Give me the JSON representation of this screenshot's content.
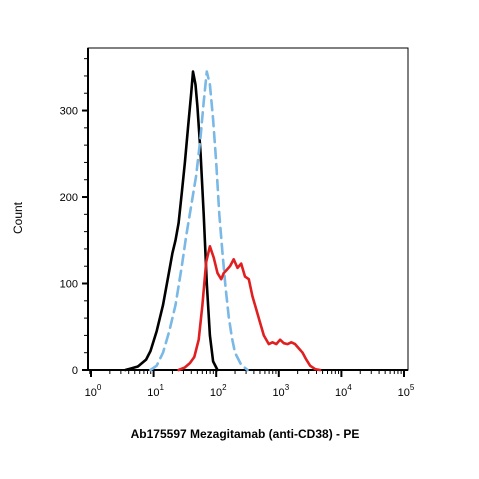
{
  "chart_data": {
    "type": "line",
    "title": "",
    "xlabel": "Ab175597 Mezagitamab (anti-CD38) - PE",
    "ylabel": "Count",
    "x_scale": "biexponential-log",
    "xlim": [
      -1,
      5
    ],
    "ylim": [
      0,
      370
    ],
    "x_ticks": [
      {
        "base": "10",
        "exp": "0",
        "value": 0
      },
      {
        "base": "10",
        "exp": "1",
        "value": 1
      },
      {
        "base": "10",
        "exp": "2",
        "value": 2
      },
      {
        "base": "10",
        "exp": "3",
        "value": 3
      },
      {
        "base": "10",
        "exp": "4",
        "value": 4
      },
      {
        "base": "10",
        "exp": "5",
        "value": 5
      }
    ],
    "y_ticks": [
      "0",
      "100",
      "200",
      "300"
    ],
    "y_tick_values": [
      0,
      100,
      200,
      300
    ],
    "grid": false,
    "legend": "none",
    "series": [
      {
        "color": "#000000",
        "style": "solid",
        "points": [
          [
            0.55,
            0
          ],
          [
            0.75,
            4
          ],
          [
            0.88,
            12
          ],
          [
            0.95,
            22
          ],
          [
            1.05,
            45
          ],
          [
            1.15,
            75
          ],
          [
            1.25,
            115
          ],
          [
            1.3,
            135
          ],
          [
            1.35,
            150
          ],
          [
            1.4,
            170
          ],
          [
            1.45,
            205
          ],
          [
            1.5,
            240
          ],
          [
            1.55,
            280
          ],
          [
            1.6,
            320
          ],
          [
            1.63,
            345
          ],
          [
            1.67,
            330
          ],
          [
            1.7,
            305
          ],
          [
            1.75,
            250
          ],
          [
            1.8,
            180
          ],
          [
            1.85,
            100
          ],
          [
            1.9,
            40
          ],
          [
            1.95,
            10
          ],
          [
            2.02,
            0
          ]
        ]
      },
      {
        "color": "#7ab8e6",
        "style": "dashed",
        "points": [
          [
            0.95,
            0
          ],
          [
            1.05,
            5
          ],
          [
            1.15,
            20
          ],
          [
            1.25,
            45
          ],
          [
            1.35,
            75
          ],
          [
            1.45,
            120
          ],
          [
            1.52,
            155
          ],
          [
            1.6,
            190
          ],
          [
            1.68,
            225
          ],
          [
            1.75,
            270
          ],
          [
            1.8,
            310
          ],
          [
            1.85,
            345
          ],
          [
            1.9,
            330
          ],
          [
            1.95,
            290
          ],
          [
            2.0,
            240
          ],
          [
            2.05,
            180
          ],
          [
            2.1,
            135
          ],
          [
            2.15,
            95
          ],
          [
            2.2,
            62
          ],
          [
            2.25,
            38
          ],
          [
            2.3,
            20
          ],
          [
            2.4,
            6
          ],
          [
            2.5,
            0
          ]
        ]
      },
      {
        "color": "#e02020",
        "style": "solid",
        "points": [
          [
            1.4,
            0
          ],
          [
            1.5,
            3
          ],
          [
            1.58,
            8
          ],
          [
            1.65,
            15
          ],
          [
            1.72,
            35
          ],
          [
            1.78,
            75
          ],
          [
            1.84,
            125
          ],
          [
            1.9,
            143
          ],
          [
            1.96,
            130
          ],
          [
            2.02,
            112
          ],
          [
            2.08,
            105
          ],
          [
            2.12,
            112
          ],
          [
            2.16,
            115
          ],
          [
            2.22,
            120
          ],
          [
            2.28,
            128
          ],
          [
            2.34,
            118
          ],
          [
            2.4,
            123
          ],
          [
            2.46,
            108
          ],
          [
            2.52,
            105
          ],
          [
            2.58,
            85
          ],
          [
            2.64,
            70
          ],
          [
            2.7,
            55
          ],
          [
            2.76,
            40
          ],
          [
            2.84,
            30
          ],
          [
            2.9,
            32
          ],
          [
            2.96,
            30
          ],
          [
            3.02,
            35
          ],
          [
            3.08,
            31
          ],
          [
            3.14,
            30
          ],
          [
            3.2,
            32
          ],
          [
            3.26,
            30
          ],
          [
            3.32,
            25
          ],
          [
            3.38,
            20
          ],
          [
            3.44,
            12
          ],
          [
            3.5,
            5
          ],
          [
            3.58,
            1
          ],
          [
            3.66,
            0
          ]
        ]
      }
    ]
  }
}
